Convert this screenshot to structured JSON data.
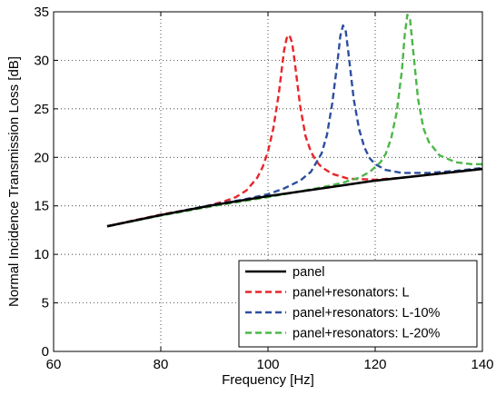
{
  "chart_data": {
    "type": "line",
    "title": "",
    "xlabel": "Frequency [Hz]",
    "ylabel": "Normal Incidence Transmission Loss [dB]",
    "xlim": [
      60,
      140
    ],
    "ylim": [
      0,
      35
    ],
    "xticks": [
      60,
      80,
      100,
      120,
      140
    ],
    "yticks": [
      0,
      5,
      10,
      15,
      20,
      25,
      30,
      35
    ],
    "grid": true,
    "legend_position": "bottom-right",
    "series": [
      {
        "name": "panel",
        "color": "#000000",
        "style": "solid",
        "x": [
          70,
          80,
          90,
          100,
          110,
          120,
          130,
          140
        ],
        "y": [
          12.9,
          14.05,
          15.1,
          16.0,
          16.8,
          17.6,
          18.2,
          18.8
        ]
      },
      {
        "name": "panel+resonators: L",
        "color": "#e8262a",
        "style": "dashed",
        "x": [
          70,
          75,
          80,
          85,
          88,
          90,
          92,
          94,
          96,
          98,
          99,
          100,
          101,
          102,
          103,
          103.5,
          104,
          104.5,
          105,
          106,
          107,
          108,
          109,
          110,
          112,
          115,
          120,
          125,
          130,
          135,
          140
        ],
        "y": [
          12.9,
          13.5,
          14.1,
          14.6,
          14.9,
          15.2,
          15.5,
          15.9,
          16.6,
          17.9,
          19.0,
          20.6,
          23.0,
          26.5,
          31.0,
          32.3,
          32.6,
          31.8,
          29.8,
          25.3,
          22.2,
          20.6,
          19.6,
          19.0,
          18.3,
          17.8,
          17.7,
          17.9,
          18.2,
          18.5,
          18.8
        ]
      },
      {
        "name": "panel+resonators: L-10%",
        "color": "#2e4fa0",
        "style": "dashed",
        "x": [
          70,
          80,
          90,
          95,
          100,
          103,
          106,
          108,
          110,
          111,
          112,
          113,
          113.5,
          114,
          114.5,
          115,
          116,
          117,
          118,
          119,
          120,
          122,
          125,
          130,
          135,
          140
        ],
        "y": [
          12.9,
          14.05,
          15.15,
          15.6,
          16.2,
          16.8,
          17.6,
          18.5,
          20.4,
          22.3,
          25.6,
          30.0,
          32.5,
          33.6,
          33.0,
          30.8,
          26.0,
          22.9,
          21.0,
          19.9,
          19.3,
          18.7,
          18.4,
          18.4,
          18.6,
          18.9
        ]
      },
      {
        "name": "panel+resonators: L-20%",
        "color": "#4cb748",
        "style": "dashed",
        "x": [
          70,
          80,
          90,
          100,
          105,
          110,
          114,
          117,
          119,
          121,
          122,
          123,
          124,
          125,
          125.5,
          126,
          126.5,
          127,
          128,
          129,
          130,
          132,
          135,
          138,
          140
        ],
        "y": [
          12.9,
          14.0,
          15.0,
          15.9,
          16.4,
          16.9,
          17.4,
          17.9,
          18.5,
          19.5,
          20.4,
          22.0,
          24.6,
          29.0,
          32.5,
          34.7,
          34.2,
          31.5,
          26.0,
          23.0,
          21.6,
          20.2,
          19.5,
          19.3,
          19.3
        ]
      }
    ]
  }
}
